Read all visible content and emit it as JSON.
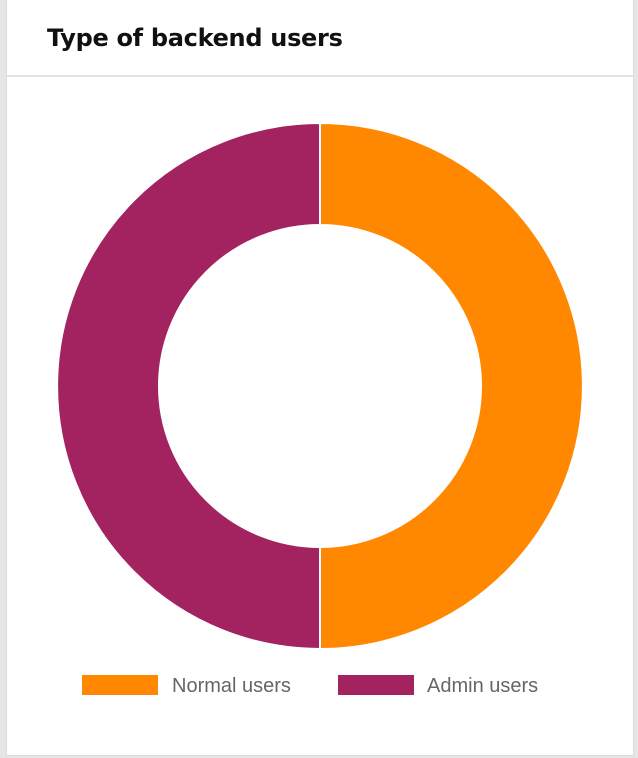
{
  "card": {
    "title": "Type of backend users"
  },
  "chart_data": {
    "type": "pie",
    "donut": true,
    "title": "Type of backend users",
    "categories": [
      "Normal users",
      "Admin users"
    ],
    "values": [
      50,
      50
    ],
    "colors": [
      "#ff8800",
      "#a2235f"
    ],
    "legend_position": "bottom"
  }
}
